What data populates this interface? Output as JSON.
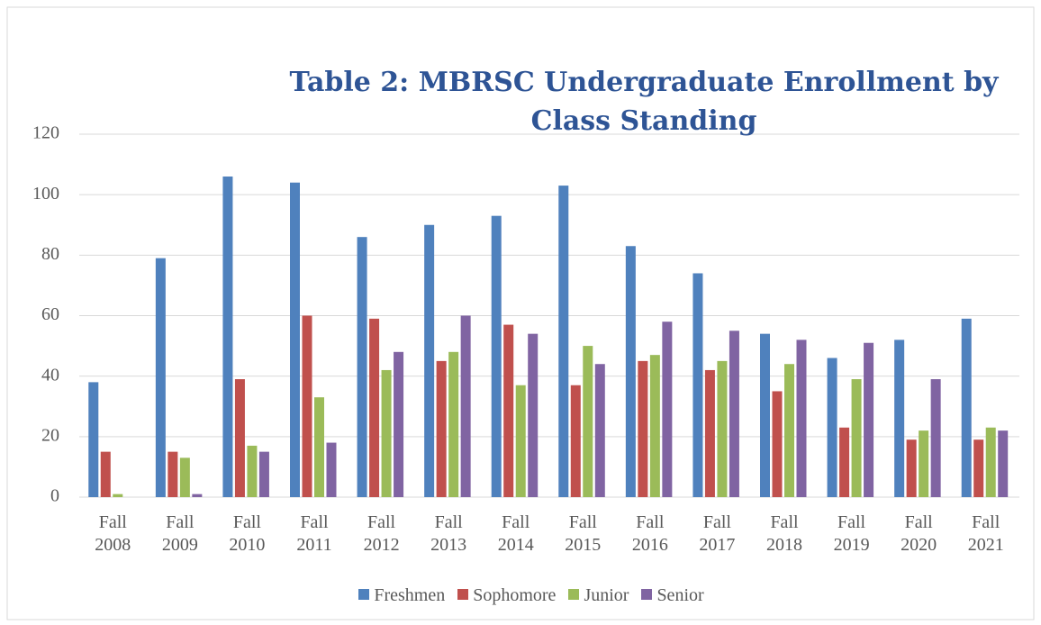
{
  "chart_data": {
    "type": "bar",
    "title": "Table 2: MBRSC Undergraduate Enrollment by Class Standing",
    "categories": [
      "Fall 2008",
      "Fall 2009",
      "Fall 2010",
      "Fall 2011",
      "Fall 2012",
      "Fall 2013",
      "Fall 2014",
      "Fall 2015",
      "Fall 2016",
      "Fall 2017",
      "Fall 2018",
      "Fall 2019",
      "Fall 2020",
      "Fall 2021"
    ],
    "series": [
      {
        "name": "Freshmen",
        "color": "#4f81bd",
        "values": [
          38,
          79,
          106,
          104,
          86,
          90,
          93,
          103,
          83,
          74,
          54,
          46,
          52,
          59
        ]
      },
      {
        "name": "Sophomore",
        "color": "#c0504d",
        "values": [
          15,
          15,
          39,
          60,
          59,
          45,
          57,
          37,
          45,
          42,
          35,
          23,
          19,
          19
        ]
      },
      {
        "name": "Junior",
        "color": "#9bbb59",
        "values": [
          1,
          13,
          17,
          33,
          42,
          48,
          37,
          50,
          47,
          45,
          44,
          39,
          22,
          23
        ]
      },
      {
        "name": "Senior",
        "color": "#8064a2",
        "values": [
          0,
          1,
          15,
          18,
          48,
          60,
          54,
          44,
          58,
          55,
          52,
          51,
          39,
          22
        ]
      }
    ],
    "ylim": [
      0,
      120
    ],
    "yticks": [
      0,
      20,
      40,
      60,
      80,
      100,
      120
    ],
    "grid": true,
    "legend": "bottom"
  }
}
